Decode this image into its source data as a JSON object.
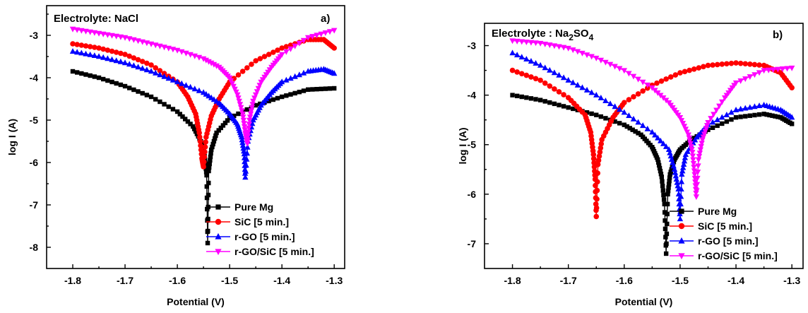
{
  "chart_data": [
    {
      "type": "scatter",
      "panel_label": "a)",
      "annotation": "Electrolyte: NaCl",
      "xlabel": "Potential (V)",
      "ylabel": "log I (A)",
      "xlim": [
        -1.85,
        -1.28
      ],
      "ylim": [
        -8.5,
        -2.3
      ],
      "xticks": [
        -1.8,
        -1.7,
        -1.6,
        -1.5,
        -1.4,
        -1.3
      ],
      "yticks": [
        -3,
        -4,
        -5,
        -6,
        -7,
        -8
      ],
      "xtick_labels": [
        "-1.8",
        "-1.7",
        "-1.6",
        "-1.5",
        "-1.4",
        "-1.3"
      ],
      "ytick_labels": [
        "-3",
        "-4",
        "-5",
        "-6",
        "-7",
        "-8"
      ],
      "legend_position": "bottom-right",
      "series": [
        {
          "name": "Pure Mg",
          "color": "#000000",
          "marker": "square",
          "x": [
            -1.8,
            -1.75,
            -1.7,
            -1.65,
            -1.6,
            -1.57,
            -1.555,
            -1.548,
            -1.544,
            -1.542,
            -1.54,
            -1.535,
            -1.525,
            -1.5,
            -1.45,
            -1.4,
            -1.35,
            -1.3
          ],
          "y": [
            -3.85,
            -4.0,
            -4.2,
            -4.45,
            -4.8,
            -5.15,
            -5.5,
            -5.85,
            -6.3,
            -7.9,
            -6.2,
            -5.7,
            -5.3,
            -4.95,
            -4.65,
            -4.45,
            -4.28,
            -4.25
          ]
        },
        {
          "name": "SiC [5 min.]",
          "color": "#ff0000",
          "marker": "circle",
          "x": [
            -1.8,
            -1.75,
            -1.7,
            -1.65,
            -1.6,
            -1.58,
            -1.565,
            -1.558,
            -1.553,
            -1.55,
            -1.545,
            -1.535,
            -1.52,
            -1.5,
            -1.45,
            -1.4,
            -1.35,
            -1.32,
            -1.3
          ],
          "y": [
            -3.2,
            -3.3,
            -3.45,
            -3.7,
            -4.1,
            -4.45,
            -4.85,
            -5.3,
            -5.9,
            -6.1,
            -5.4,
            -4.9,
            -4.5,
            -4.1,
            -3.6,
            -3.3,
            -3.1,
            -3.1,
            -3.3
          ]
        },
        {
          "name": "r-GO [5 min.]",
          "color": "#0000ff",
          "marker": "triangle-up",
          "x": [
            -1.8,
            -1.75,
            -1.7,
            -1.65,
            -1.6,
            -1.55,
            -1.52,
            -1.5,
            -1.485,
            -1.477,
            -1.472,
            -1.47,
            -1.465,
            -1.455,
            -1.44,
            -1.42,
            -1.4,
            -1.35,
            -1.32,
            -1.3
          ],
          "y": [
            -3.38,
            -3.5,
            -3.65,
            -3.85,
            -4.1,
            -4.35,
            -4.6,
            -4.85,
            -5.1,
            -5.4,
            -5.8,
            -6.35,
            -5.5,
            -5.0,
            -4.65,
            -4.35,
            -4.1,
            -3.85,
            -3.8,
            -3.9
          ]
        },
        {
          "name": "r-GO/SiC [5 min.]",
          "color": "#ff00ff",
          "marker": "triangle-down",
          "x": [
            -1.8,
            -1.75,
            -1.7,
            -1.65,
            -1.6,
            -1.55,
            -1.52,
            -1.5,
            -1.485,
            -1.475,
            -1.47,
            -1.466,
            -1.462,
            -1.455,
            -1.44,
            -1.42,
            -1.4,
            -1.35,
            -1.3
          ],
          "y": [
            -2.85,
            -2.95,
            -3.05,
            -3.2,
            -3.35,
            -3.55,
            -3.75,
            -4.0,
            -4.4,
            -4.85,
            -5.3,
            -5.55,
            -5.0,
            -4.55,
            -4.1,
            -3.75,
            -3.45,
            -3.05,
            -2.88
          ]
        }
      ]
    },
    {
      "type": "scatter",
      "panel_label": "b)",
      "annotation": "Electrolyte : Na2SO4",
      "annotation_parts": {
        "prefix": "Electrolyte : Na",
        "sub1": "2",
        "mid": "SO",
        "sub2": "4"
      },
      "xlabel": "Potential (V)",
      "ylabel": "log I (A)",
      "xlim": [
        -1.85,
        -1.28
      ],
      "ylim": [
        -7.5,
        -2.55
      ],
      "xticks": [
        -1.8,
        -1.7,
        -1.6,
        -1.5,
        -1.4,
        -1.3
      ],
      "yticks": [
        -3,
        -4,
        -5,
        -6,
        -7
      ],
      "xtick_labels": [
        "-1.8",
        "-1.7",
        "-1.6",
        "-1.5",
        "-1.4",
        "-1.3"
      ],
      "ytick_labels": [
        "-3",
        "-4",
        "-5",
        "-6",
        "-7"
      ],
      "legend_position": "bottom-right",
      "series": [
        {
          "name": "Pure Mg",
          "color": "#000000",
          "marker": "square",
          "x": [
            -1.8,
            -1.75,
            -1.7,
            -1.65,
            -1.6,
            -1.57,
            -1.55,
            -1.54,
            -1.533,
            -1.528,
            -1.525,
            -1.522,
            -1.518,
            -1.51,
            -1.5,
            -1.48,
            -1.45,
            -1.4,
            -1.35,
            -1.32,
            -1.3
          ],
          "y": [
            -4.0,
            -4.1,
            -4.25,
            -4.4,
            -4.6,
            -4.8,
            -5.05,
            -5.3,
            -5.65,
            -6.2,
            -7.2,
            -6.0,
            -5.6,
            -5.3,
            -5.1,
            -4.9,
            -4.7,
            -4.45,
            -4.38,
            -4.45,
            -4.58
          ]
        },
        {
          "name": "SiC [5 min.]",
          "color": "#ff0000",
          "marker": "circle",
          "x": [
            -1.8,
            -1.75,
            -1.7,
            -1.67,
            -1.66,
            -1.655,
            -1.652,
            -1.65,
            -1.647,
            -1.64,
            -1.62,
            -1.6,
            -1.55,
            -1.5,
            -1.45,
            -1.4,
            -1.35,
            -1.32,
            -1.3
          ],
          "y": [
            -3.5,
            -3.7,
            -4.05,
            -4.4,
            -4.75,
            -5.2,
            -5.7,
            -6.45,
            -5.4,
            -4.9,
            -4.45,
            -4.15,
            -3.8,
            -3.55,
            -3.4,
            -3.35,
            -3.4,
            -3.55,
            -3.85
          ]
        },
        {
          "name": "r-GO [5 min.]",
          "color": "#0000ff",
          "marker": "triangle-up",
          "x": [
            -1.8,
            -1.75,
            -1.7,
            -1.65,
            -1.6,
            -1.55,
            -1.52,
            -1.51,
            -1.503,
            -1.5,
            -1.497,
            -1.49,
            -1.47,
            -1.45,
            -1.4,
            -1.35,
            -1.32,
            -1.3
          ],
          "y": [
            -3.15,
            -3.4,
            -3.7,
            -4.0,
            -4.35,
            -4.75,
            -5.1,
            -5.5,
            -5.9,
            -6.5,
            -5.6,
            -5.2,
            -4.85,
            -4.6,
            -4.3,
            -4.2,
            -4.3,
            -4.45
          ]
        },
        {
          "name": "r-GO/SiC [5 min.]",
          "color": "#ff00ff",
          "marker": "triangle-down",
          "x": [
            -1.8,
            -1.75,
            -1.7,
            -1.65,
            -1.6,
            -1.55,
            -1.52,
            -1.5,
            -1.485,
            -1.478,
            -1.474,
            -1.471,
            -1.467,
            -1.46,
            -1.45,
            -1.42,
            -1.4,
            -1.35,
            -1.3
          ],
          "y": [
            -2.9,
            -2.95,
            -3.05,
            -3.25,
            -3.5,
            -3.85,
            -4.15,
            -4.45,
            -4.8,
            -5.15,
            -5.6,
            -6.05,
            -5.3,
            -4.9,
            -4.55,
            -4.05,
            -3.75,
            -3.5,
            -3.45
          ]
        }
      ]
    }
  ]
}
